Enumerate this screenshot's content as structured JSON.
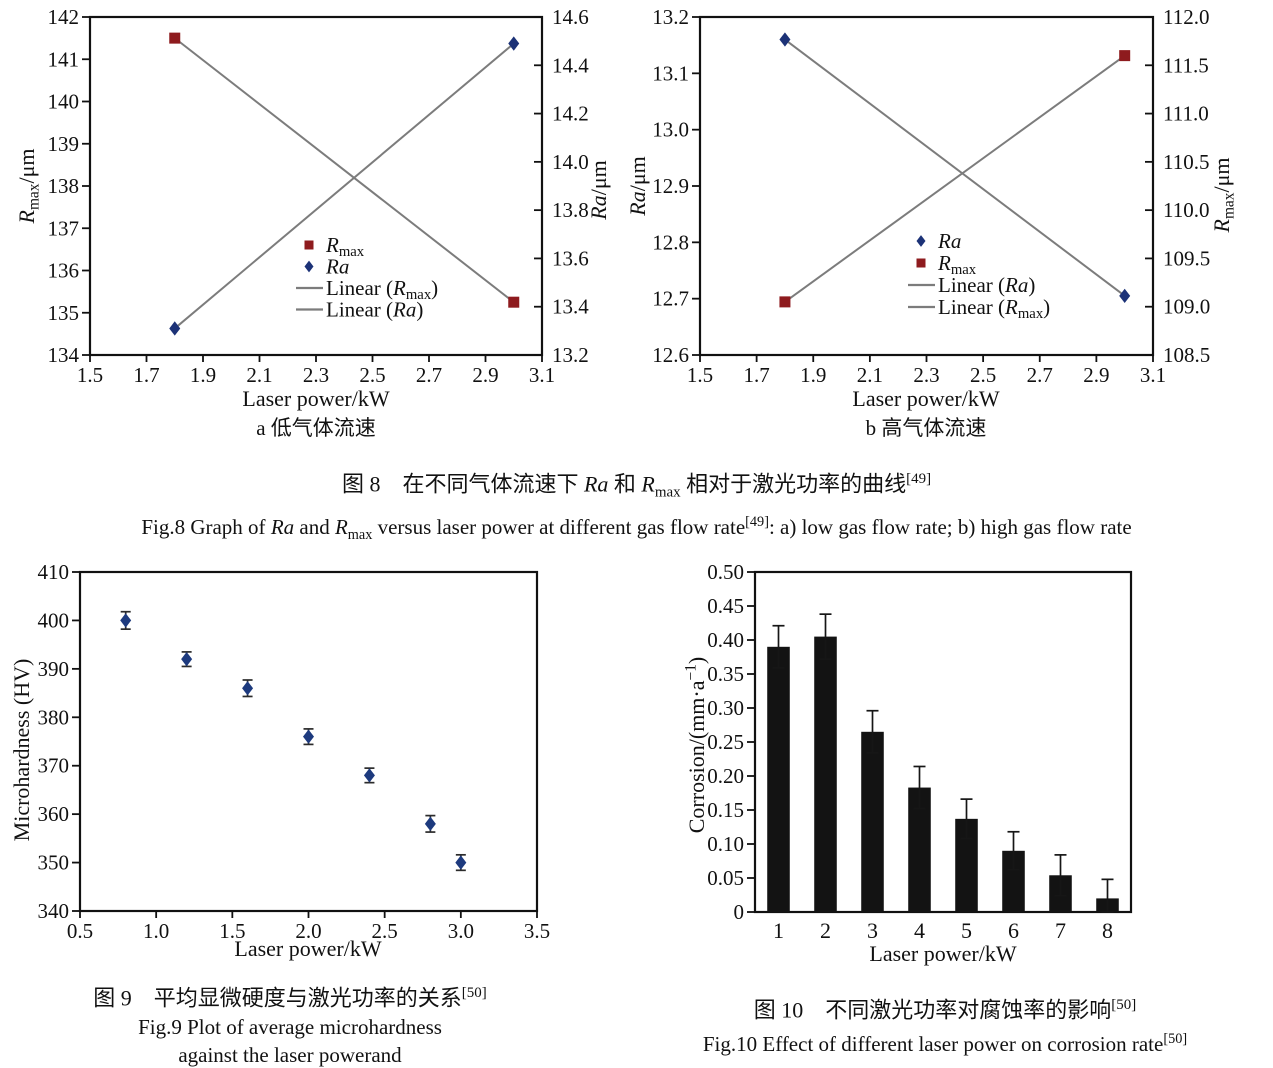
{
  "page": {
    "background": "#ffffff",
    "text_color": "#111111"
  },
  "fig8": {
    "caption_cn": "图 8　在不同气体流速下 <i>Ra</i> 和 <i>R</i><sub>max</sub> 相对于激光功率的曲线<sup>[49]</sup>",
    "caption_en": "Fig.8 Graph of <i>Ra</i> and <i>R</i><sub>max</sub> versus laser power at different gas flow rate<sup>[49]</sup>: a) low gas flow rate; b) high gas flow rate"
  },
  "fig9": {
    "caption_cn": "图 9　平均显微硬度与激光功率的关系<sup>[50]</sup>",
    "caption_en_line1": "Fig.9 Plot of average microhardness",
    "caption_en_line2": "against the laser powerand"
  },
  "fig10": {
    "caption_cn": "图 10　不同激光功率对腐蚀率的影响<sup>[50]</sup>",
    "caption_en": "Fig.10 Effect of different laser power on corrosion rate<sup>[50]</sup>"
  },
  "chart_data": [
    {
      "id": "fig8a",
      "type": "dual_scatter_linear",
      "panel_label": "a 低气体流速",
      "xlabel": "Laser power/kW",
      "x_axis": {
        "min": 1.5,
        "max": 3.1,
        "tick_labels": [
          "1.5",
          "1.7",
          "1.9",
          "2.1",
          "2.3",
          "2.5",
          "2.7",
          "2.9",
          "3.1"
        ]
      },
      "left_axis": {
        "label": "<i>R</i><sub>max</sub>/μm",
        "min": 134,
        "max": 142,
        "tick_labels": [
          "134",
          "135",
          "136",
          "137",
          "138",
          "139",
          "140",
          "141",
          "142"
        ]
      },
      "right_axis": {
        "label": "<i>Ra</i>/μm",
        "min": 13.2,
        "max": 14.6,
        "tick_labels": [
          "13.2",
          "13.4",
          "13.6",
          "13.8",
          "14.0",
          "14.2",
          "14.4",
          "14.6"
        ]
      },
      "fit_color": "#7c7c7c",
      "series": [
        {
          "name": "<i>R</i><sub>max</sub>",
          "axis": "left",
          "marker": "square",
          "color": "#8e1b1e",
          "points": [
            [
              1.8,
              141.5
            ],
            [
              3.0,
              135.25
            ]
          ],
          "fit_label": "Linear (<i>R</i><sub>max</sub>)"
        },
        {
          "name": "<i>Ra</i>",
          "axis": "right",
          "marker": "diamond",
          "color": "#1c3277",
          "points": [
            [
              1.8,
              13.31
            ],
            [
              3.0,
              14.49
            ]
          ],
          "fit_label": "Linear (<i>Ra</i>)"
        }
      ]
    },
    {
      "id": "fig8b",
      "type": "dual_scatter_linear",
      "panel_label": "b 高气体流速",
      "xlabel": "Laser power/kW",
      "x_axis": {
        "min": 1.5,
        "max": 3.1,
        "tick_labels": [
          "1.5",
          "1.7",
          "1.9",
          "2.1",
          "2.3",
          "2.5",
          "2.7",
          "2.9",
          "3.1"
        ]
      },
      "left_axis": {
        "label": "<i>Ra</i>/μm",
        "min": 12.6,
        "max": 13.2,
        "tick_labels": [
          "12.6",
          "12.7",
          "12.8",
          "12.9",
          "13.0",
          "13.1",
          "13.2"
        ]
      },
      "right_axis": {
        "label": "<i>R</i><sub>max</sub>/μm",
        "min": 108.5,
        "max": 112.0,
        "tick_labels": [
          "108.5",
          "109.0",
          "109.5",
          "110.0",
          "110.5",
          "111.0",
          "111.5",
          "112.0"
        ]
      },
      "fit_color": "#7c7c7c",
      "series": [
        {
          "name": "<i>Ra</i>",
          "axis": "left",
          "marker": "diamond",
          "color": "#1c3277",
          "points": [
            [
              1.8,
              13.16
            ],
            [
              3.0,
              12.705
            ]
          ],
          "fit_label": "Linear (<i>Ra</i>)"
        },
        {
          "name": "<i>R</i><sub>max</sub>",
          "axis": "right",
          "marker": "square",
          "color": "#8e1b1e",
          "points": [
            [
              1.8,
              109.05
            ],
            [
              3.0,
              111.6
            ]
          ],
          "fit_label": "Linear (<i>R</i><sub>max</sub>)"
        }
      ]
    },
    {
      "id": "fig9",
      "type": "scatter_errorbar",
      "xlabel": "Laser power/kW",
      "ylabel": "Microhardness (HV)",
      "x_axis": {
        "min": 0.5,
        "max": 3.5,
        "tick_labels": [
          "0.5",
          "1.0",
          "1.5",
          "2.0",
          "2.5",
          "3.0",
          "3.5"
        ]
      },
      "y_axis": {
        "min": 340,
        "max": 410,
        "tick_labels": [
          "340",
          "350",
          "360",
          "370",
          "380",
          "390",
          "400",
          "410"
        ]
      },
      "marker_color": "#1d3a7e",
      "errorbar_color": "#2b2b2b",
      "points": [
        {
          "x": 0.8,
          "y": 400,
          "err": 1.8
        },
        {
          "x": 1.2,
          "y": 392,
          "err": 1.5
        },
        {
          "x": 1.6,
          "y": 386,
          "err": 1.7
        },
        {
          "x": 2.0,
          "y": 376,
          "err": 1.6
        },
        {
          "x": 2.4,
          "y": 368,
          "err": 1.5
        },
        {
          "x": 2.8,
          "y": 358,
          "err": 1.7
        },
        {
          "x": 3.0,
          "y": 350,
          "err": 1.6
        }
      ]
    },
    {
      "id": "fig10",
      "type": "bar_errorbar",
      "xlabel": "Laser power/kW",
      "ylabel": "Corrosion/(mm·a<sup>−1</sup>)",
      "categories": [
        "1",
        "2",
        "3",
        "4",
        "5",
        "6",
        "7",
        "8"
      ],
      "values": [
        0.39,
        0.405,
        0.265,
        0.183,
        0.137,
        0.09,
        0.054,
        0.02
      ],
      "errors": [
        0.031,
        0.033,
        0.031,
        0.031,
        0.029,
        0.028,
        0.03,
        0.028
      ],
      "y_axis": {
        "min": 0,
        "max": 0.5,
        "tick_labels": [
          "0",
          "0.05",
          "0.10",
          "0.15",
          "0.20",
          "0.25",
          "0.30",
          "0.35",
          "0.40",
          "0.45",
          "0.50"
        ]
      },
      "bar_color": "#131313",
      "errorbar_color": "#161616"
    }
  ]
}
